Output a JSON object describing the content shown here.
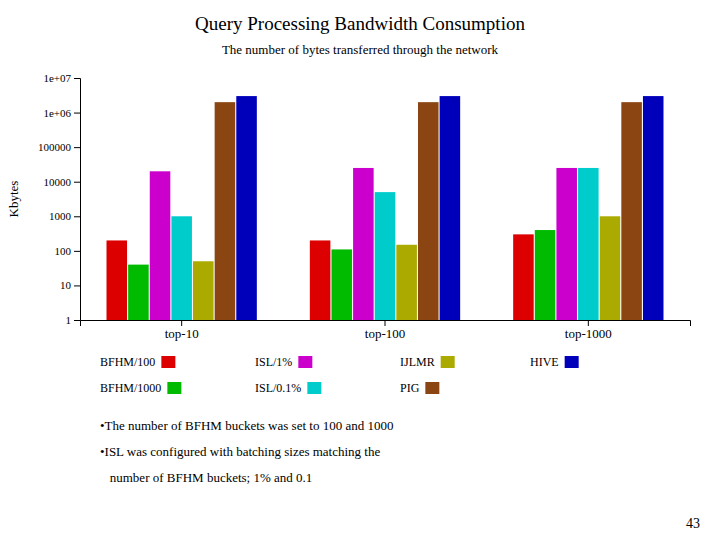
{
  "chart_data": {
    "type": "bar",
    "title": "Query Processing Bandwidth Consumption",
    "subtitle": "The number of bytes transferred through the network",
    "ylabel": "Kbytes",
    "categories": [
      "top-10",
      "top-100",
      "top-1000"
    ],
    "series": [
      {
        "name": "BFHM/100",
        "color": "#dd0000",
        "values": [
          200,
          200,
          300
        ]
      },
      {
        "name": "BFHM/1000",
        "color": "#00bb00",
        "values": [
          40,
          110,
          400
        ]
      },
      {
        "name": "ISL/1%",
        "color": "#cc00cc",
        "values": [
          20000,
          25000,
          25000
        ]
      },
      {
        "name": "ISL/0.1%",
        "color": "#00cccc",
        "values": [
          1000,
          5000,
          25000
        ]
      },
      {
        "name": "IJLMR",
        "color": "#aaaa00",
        "values": [
          50,
          150,
          1000
        ]
      },
      {
        "name": "PIG",
        "color": "#8B4513",
        "values": [
          2000000,
          2000000,
          2000000
        ]
      },
      {
        "name": "HIVE",
        "color": "#0000bb",
        "values": [
          3000000,
          3000000,
          3000000
        ]
      }
    ],
    "log": "y",
    "ylim": [
      1,
      10000000
    ],
    "yticks": [
      1,
      10,
      100,
      1000,
      10000,
      100000,
      {
        "value": 1000000,
        "label": "1e+06"
      },
      {
        "value": 10000000,
        "label": "1e+07"
      }
    ],
    "grid": false,
    "legend": "bottom",
    "annotations": [
      "•The number of BFHM buckets was set to 100 and 1000",
      "•ISL was configured with batching sizes matching the",
      "   number of BFHM buckets; 1% and 0.1"
    ],
    "page_number": "43"
  }
}
